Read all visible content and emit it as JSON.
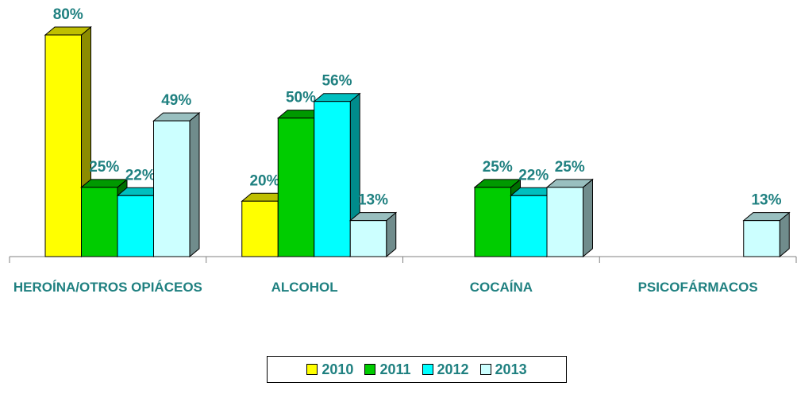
{
  "chart_data": {
    "type": "bar3d",
    "categories": [
      "HEROÍNA/OTROS OPIÁCEOS",
      "ALCOHOL",
      "COCAÍNA",
      "PSICOFÁRMACOS"
    ],
    "series": [
      {
        "name": "2010",
        "color": "#ffff00",
        "values": [
          80,
          20,
          null,
          null
        ],
        "value_labels": [
          "80%",
          "20%",
          null,
          null
        ]
      },
      {
        "name": "2011",
        "color": "#00cc00",
        "values": [
          25,
          50,
          25,
          null
        ],
        "value_labels": [
          "25%",
          "50%",
          "25%",
          null
        ]
      },
      {
        "name": "2012",
        "color": "#00ffff",
        "values": [
          22,
          56,
          22,
          null
        ],
        "value_labels": [
          "22%",
          "56%",
          "22%",
          null
        ]
      },
      {
        "name": "2013",
        "color": "#ccffff",
        "values": [
          49,
          13,
          25,
          13
        ],
        "value_labels": [
          "49%",
          "13%",
          "25%",
          "13%"
        ]
      }
    ]
  }
}
